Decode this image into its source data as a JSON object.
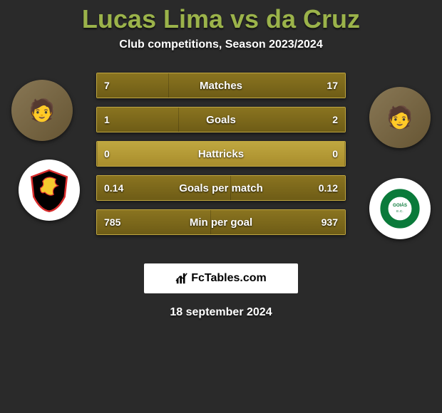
{
  "title": "Lucas Lima vs da Cruz",
  "subtitle": "Club competitions, Season 2023/2024",
  "date": "18 september 2024",
  "brand": "FcTables.com",
  "colors": {
    "title": "#9bb34a",
    "bar_outer_top": "#bfa740",
    "bar_outer_bottom": "#a98d2c",
    "bar_inner_top": "#8a7420",
    "bar_inner_bottom": "#6e5c16",
    "background": "#2a2a2a",
    "text": "#ffffff",
    "brand_bg": "#ffffff"
  },
  "players": {
    "left": {
      "name": "Lucas Lima",
      "avatar_initial": "🧑",
      "club": "Sport Recife",
      "club_primary": "#d82c2c",
      "club_secondary": "#f4c92e",
      "club_bg": "#000000"
    },
    "right": {
      "name": "da Cruz",
      "avatar_initial": "🧑",
      "club": "Goiás",
      "club_primary": "#0a7a3a",
      "club_secondary": "#ffffff",
      "club_bg": "#ffffff"
    }
  },
  "stats": [
    {
      "label": "Matches",
      "left_display": "7",
      "right_display": "17",
      "left_pct": 29,
      "right_pct": 71
    },
    {
      "label": "Goals",
      "left_display": "1",
      "right_display": "2",
      "left_pct": 33,
      "right_pct": 67
    },
    {
      "label": "Hattricks",
      "left_display": "0",
      "right_display": "0",
      "left_pct": 0,
      "right_pct": 0
    },
    {
      "label": "Goals per match",
      "left_display": "0.14",
      "right_display": "0.12",
      "left_pct": 54,
      "right_pct": 46
    },
    {
      "label": "Min per goal",
      "left_display": "785",
      "right_display": "937",
      "left_pct": 46,
      "right_pct": 54
    }
  ]
}
